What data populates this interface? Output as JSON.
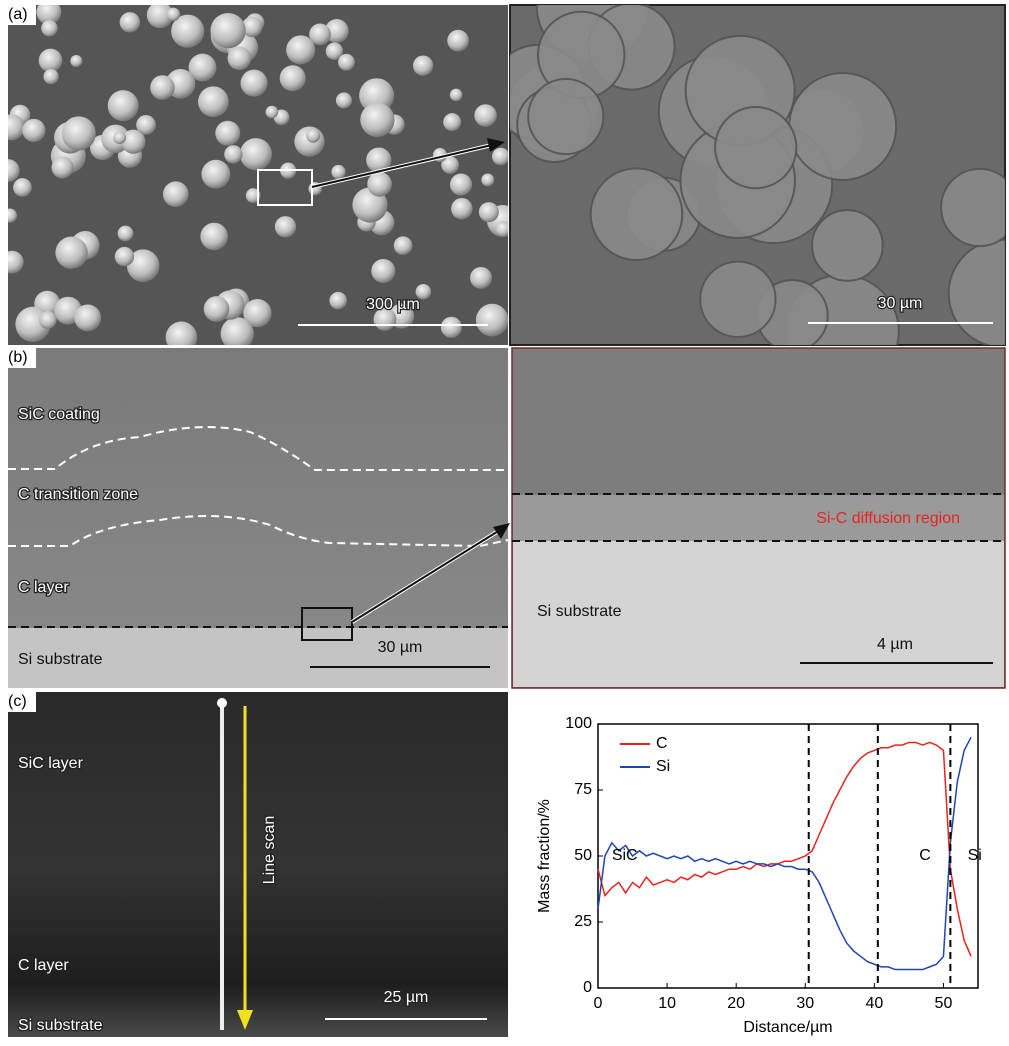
{
  "panels": {
    "a": {
      "label": "(a)",
      "left_scale": "300 µm",
      "right_scale": "30 µm"
    },
    "b": {
      "label": "(b)",
      "left_labels": [
        "SiC coating",
        "C transition zone",
        "C layer",
        "Si substrate"
      ],
      "left_scale": "30 µm",
      "right_region": "Si-C diffusion region",
      "right_substrate": "Si substrate",
      "right_scale": "4 µm"
    },
    "c": {
      "label": "(c)",
      "layers": [
        "SiC layer",
        "C layer",
        "Si substrate"
      ],
      "scan": "Line scan",
      "scale": "25 µm"
    }
  },
  "chart_data": {
    "type": "line",
    "xlabel": "Distance/µm",
    "ylabel": "Mass fraction/%",
    "xlim": [
      0,
      55
    ],
    "ylim": [
      0,
      100
    ],
    "xticks": [
      0,
      10,
      20,
      30,
      40,
      50
    ],
    "yticks": [
      0,
      25,
      50,
      75,
      100
    ],
    "x": [
      0,
      1,
      2,
      3,
      4,
      5,
      6,
      7,
      8,
      9,
      10,
      11,
      12,
      13,
      14,
      15,
      16,
      17,
      18,
      19,
      20,
      21,
      22,
      23,
      24,
      25,
      26,
      27,
      28,
      29,
      30,
      31,
      32,
      33,
      34,
      35,
      36,
      37,
      38,
      39,
      40,
      41,
      42,
      43,
      44,
      45,
      46,
      47,
      48,
      49,
      50,
      51,
      52,
      53,
      54
    ],
    "series": [
      {
        "name": "C",
        "color": "#e8231f",
        "values": [
          45,
          35,
          38,
          40,
          36,
          40,
          38,
          42,
          39,
          40,
          41,
          40,
          42,
          41,
          43,
          42,
          44,
          43,
          44,
          45,
          45,
          46,
          45,
          47,
          46,
          47,
          47,
          48,
          48,
          49,
          50,
          52,
          58,
          64,
          70,
          75,
          80,
          84,
          87,
          89,
          90,
          91,
          91,
          92,
          92,
          93,
          93,
          92,
          93,
          92,
          90,
          45,
          30,
          18,
          12
        ]
      },
      {
        "name": "Si",
        "color": "#1f44b4",
        "values": [
          30,
          50,
          55,
          52,
          54,
          50,
          52,
          50,
          51,
          50,
          49,
          50,
          49,
          50,
          48,
          49,
          48,
          49,
          48,
          47,
          48,
          47,
          48,
          47,
          47,
          46,
          47,
          46,
          46,
          45,
          45,
          44,
          40,
          34,
          28,
          22,
          17,
          14,
          12,
          10,
          9,
          8,
          8,
          7,
          7,
          7,
          7,
          7,
          8,
          9,
          12,
          55,
          78,
          90,
          95
        ]
      }
    ],
    "boundaries": [
      30.5,
      40.5,
      51
    ],
    "annotations": [
      {
        "text": "SiC",
        "x": 2
      },
      {
        "text": "C",
        "x": 46.5
      },
      {
        "text": "Si",
        "x": 53.5
      }
    ]
  }
}
